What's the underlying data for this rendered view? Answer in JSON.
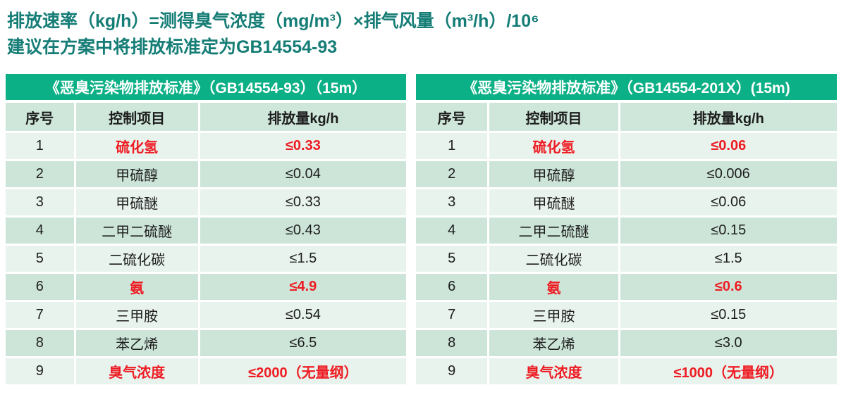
{
  "header": {
    "line1": "排放速率（kg/h）=测得臭气浓度（mg/m³）×排气风量（m³/h）/10⁶",
    "line2": "建议在方案中将排放标准定为GB14554-93"
  },
  "colors": {
    "title_text": "#157d76",
    "banner_bg": "#0cb086",
    "banner_text": "#ffffff",
    "row_light": "#e8f3ed",
    "row_dark": "#cde5d9",
    "body_text": "#1d1d1d",
    "highlight_red": "#ee1c23"
  },
  "tables": [
    {
      "title": "《恶臭污染物排放标准》（GB14554-93）（15m）",
      "columns": [
        "序号",
        "控制项目",
        "排放量kg/h"
      ],
      "rows": [
        {
          "no": "1",
          "item": "硫化氢",
          "value": "≤0.33",
          "highlight": true
        },
        {
          "no": "2",
          "item": "甲硫醇",
          "value": "≤0.04",
          "highlight": false
        },
        {
          "no": "3",
          "item": "甲硫醚",
          "value": "≤0.33",
          "highlight": false
        },
        {
          "no": "4",
          "item": "二甲二硫醚",
          "value": "≤0.43",
          "highlight": false
        },
        {
          "no": "5",
          "item": "二硫化碳",
          "value": "≤1.5",
          "highlight": false
        },
        {
          "no": "6",
          "item": "氨",
          "value": "≤4.9",
          "highlight": true
        },
        {
          "no": "7",
          "item": "三甲胺",
          "value": "≤0.54",
          "highlight": false
        },
        {
          "no": "8",
          "item": "苯乙烯",
          "value": "≤6.5",
          "highlight": false
        },
        {
          "no": "9",
          "item": "臭气浓度",
          "value": "≤2000（无量纲）",
          "highlight": true
        }
      ]
    },
    {
      "title": "《恶臭污染物排放标准》（GB14554-201X）(15m)",
      "columns": [
        "序号",
        "控制项目",
        "排放量kg/h"
      ],
      "rows": [
        {
          "no": "1",
          "item": "硫化氢",
          "value": "≤0.06",
          "highlight": true
        },
        {
          "no": "2",
          "item": "甲硫醇",
          "value": "≤0.006",
          "highlight": false
        },
        {
          "no": "3",
          "item": "甲硫醚",
          "value": "≤0.06",
          "highlight": false
        },
        {
          "no": "4",
          "item": "二甲二硫醚",
          "value": "≤0.15",
          "highlight": false
        },
        {
          "no": "5",
          "item": "二硫化碳",
          "value": "≤1.5",
          "highlight": false
        },
        {
          "no": "6",
          "item": "氨",
          "value": "≤0.6",
          "highlight": true
        },
        {
          "no": "7",
          "item": "三甲胺",
          "value": "≤0.15",
          "highlight": false
        },
        {
          "no": "8",
          "item": "苯乙烯",
          "value": "≤3.0",
          "highlight": false
        },
        {
          "no": "9",
          "item": "臭气浓度",
          "value": "≤1000（无量纲）",
          "highlight": true
        }
      ]
    }
  ]
}
